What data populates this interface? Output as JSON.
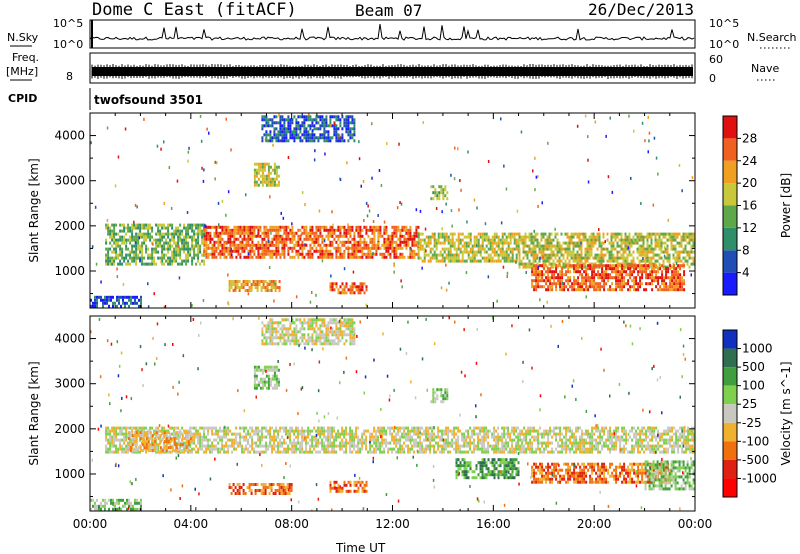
{
  "header": {
    "station": "Dome C East (fitACF)",
    "beam": "Beam 07",
    "date": "26/Dec/2013"
  },
  "top_panels": {
    "nsky_label": "N.Sky",
    "nsky_ticks": [
      "10^5",
      "10^0"
    ],
    "nsearch_label": "N.Search",
    "nsearch_ticks": [
      "10^5",
      "10^0"
    ],
    "freq_label": "Freq.",
    "freq_unit": "[MHz]",
    "freq_ticks": [
      "8"
    ],
    "nave_label": "Nave",
    "nave_ticks": [
      "60",
      "0"
    ],
    "cpid_label": "CPID",
    "cpid_value": "twofsound 3501"
  },
  "chart_data": [
    {
      "type": "heatmap",
      "quantity": "Power",
      "colorbar_label": "Power [dB]",
      "ylabel": "Slant Range [km]",
      "xlabel": "",
      "x_ticks": [
        "00:00",
        "04:00",
        "08:00",
        "12:00",
        "16:00",
        "20:00",
        "00:00"
      ],
      "xlim_hours": [
        0,
        24
      ],
      "y_ticks": [
        "1000",
        "2000",
        "3000",
        "4000"
      ],
      "ylim": [
        180,
        4500
      ],
      "colorbar_ticks": [
        "4",
        "8",
        "12",
        "16",
        "20",
        "24",
        "28"
      ],
      "colorbar_range": [
        0,
        32
      ],
      "colors": [
        "#1a1aff",
        "#1f4fb4",
        "#2f8f6a",
        "#5fa84a",
        "#c8c83a",
        "#f0a020",
        "#f06020",
        "#e01010"
      ],
      "echo_regions": [
        {
          "t": [
            0.6,
            4.5
          ],
          "r": [
            1150,
            2050
          ],
          "level": 3
        },
        {
          "t": [
            4.5,
            13
          ],
          "r": [
            1300,
            2000
          ],
          "level": 6
        },
        {
          "t": [
            13,
            17
          ],
          "r": [
            1200,
            1850
          ],
          "level": 4
        },
        {
          "t": [
            17,
            24
          ],
          "r": [
            1100,
            1850
          ],
          "level": 4
        },
        {
          "t": [
            17.5,
            23.6
          ],
          "r": [
            600,
            1150
          ],
          "level": 6
        },
        {
          "t": [
            5.5,
            7.5
          ],
          "r": [
            600,
            800
          ],
          "level": 5
        },
        {
          "t": [
            9.5,
            11
          ],
          "r": [
            550,
            750
          ],
          "level": 6
        },
        {
          "t": [
            0,
            2
          ],
          "r": [
            200,
            450
          ],
          "level": 1
        },
        {
          "t": [
            6.8,
            10.5
          ],
          "r": [
            3900,
            4450
          ],
          "level": 1
        },
        {
          "t": [
            6.5,
            7.5
          ],
          "r": [
            2900,
            3400
          ],
          "level": 4
        },
        {
          "t": [
            13.5,
            14.2
          ],
          "r": [
            2600,
            2900
          ],
          "level": 3
        }
      ]
    },
    {
      "type": "heatmap",
      "quantity": "Velocity",
      "colorbar_label": "Velocity [m s^-1]",
      "ylabel": "Slant Range [km]",
      "xlabel": "Time UT",
      "x_ticks": [
        "00:00",
        "04:00",
        "08:00",
        "12:00",
        "16:00",
        "20:00",
        "00:00"
      ],
      "xlim_hours": [
        0,
        24
      ],
      "y_ticks": [
        "1000",
        "2000",
        "3000",
        "4000"
      ],
      "ylim": [
        180,
        4500
      ],
      "colorbar_ticks": [
        "1000",
        "500",
        "100",
        "25",
        "-25",
        "-100",
        "-500",
        "-1000"
      ],
      "colors": [
        "#1030c0",
        "#2f6f4f",
        "#3f9f3f",
        "#7fd04f",
        "#c8c8c0",
        "#f0b030",
        "#f07010",
        "#e02010",
        "#ff0000"
      ],
      "echo_regions": [
        {
          "t": [
            0.6,
            24
          ],
          "r": [
            1500,
            2050
          ],
          "level": 4
        },
        {
          "t": [
            1.5,
            4
          ],
          "r": [
            1500,
            1950
          ],
          "level": 5
        },
        {
          "t": [
            17.5,
            23
          ],
          "r": [
            800,
            1250
          ],
          "level": 6
        },
        {
          "t": [
            5.5,
            8
          ],
          "r": [
            600,
            800
          ],
          "level": 6
        },
        {
          "t": [
            9.5,
            11
          ],
          "r": [
            600,
            850
          ],
          "level": 6
        },
        {
          "t": [
            14.5,
            17
          ],
          "r": [
            900,
            1350
          ],
          "level": 2
        },
        {
          "t": [
            22,
            24
          ],
          "r": [
            700,
            1300
          ],
          "level": 3
        },
        {
          "t": [
            0,
            2
          ],
          "r": [
            200,
            450
          ],
          "level": 3
        },
        {
          "t": [
            6.8,
            10.5
          ],
          "r": [
            3900,
            4450
          ],
          "level": 4
        },
        {
          "t": [
            6.5,
            7.5
          ],
          "r": [
            2900,
            3400
          ],
          "level": 3
        },
        {
          "t": [
            13.5,
            14.2
          ],
          "r": [
            2600,
            2900
          ],
          "level": 3
        }
      ]
    }
  ]
}
